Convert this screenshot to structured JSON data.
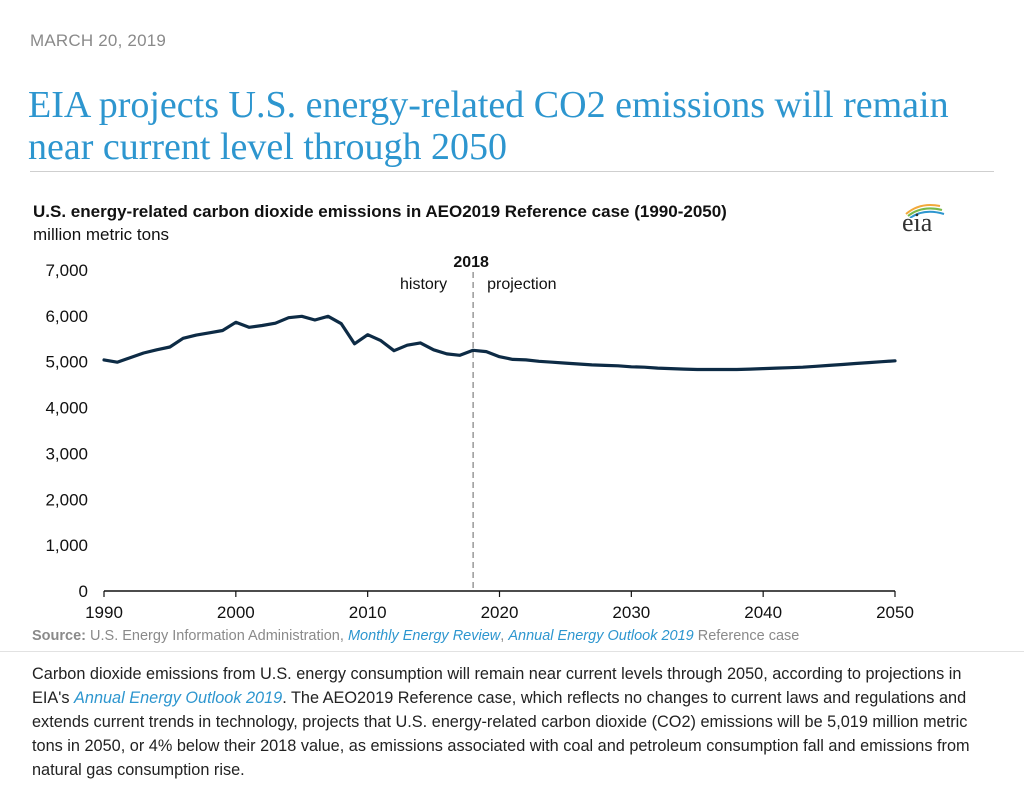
{
  "article": {
    "date": "MARCH 20, 2019",
    "headline": "EIA projects U.S. energy-related CO2 emissions will remain near current level through 2050",
    "source_label": "Source:",
    "source_text": "U.S. Energy Information Administration,",
    "source_link1": "Monthly Energy Review",
    "source_sep": ",",
    "source_link2": "Annual Energy Outlook 2019",
    "source_tail": "Reference case",
    "caption_part1": "Carbon dioxide emissions from U.S. energy consumption will remain near current levels through 2050, according to projections in EIA's",
    "caption_link": "Annual Energy Outlook 2019",
    "caption_part2": ". The AEO2019 Reference case, which reflects no changes to current laws and regulations and extends current trends in technology, projects that U.S. energy-related carbon dioxide (CO2) emissions will be 5,019 million metric tons in 2050, or 4% below their 2018 value, as emissions associated with coal and petroleum consumption fall and emissions from natural gas consumption rise.",
    "logo_text": "eia"
  },
  "colors": {
    "headline": "#2d96cf",
    "line": "#0d2b45",
    "divider": "#999999",
    "link": "#2d96cf"
  },
  "chart_data": {
    "type": "line",
    "title": "U.S. energy-related carbon dioxide emissions in AEO2019 Reference case (1990-2050)",
    "ylabel": "million metric tons",
    "xlim": [
      1990,
      2050
    ],
    "ylim": [
      0,
      7000
    ],
    "x_ticks": [
      1990,
      2000,
      2010,
      2020,
      2030,
      2040,
      2050
    ],
    "x_tick_labels": [
      "1990",
      "2000",
      "2010",
      "2020",
      "2030",
      "2040",
      "2050"
    ],
    "y_ticks": [
      0,
      1000,
      2000,
      3000,
      4000,
      5000,
      6000,
      7000
    ],
    "y_tick_labels": [
      "0",
      "1,000",
      "2,000",
      "3,000",
      "4,000",
      "5,000",
      "6,000",
      "7,000"
    ],
    "grid": false,
    "divider": {
      "x": 2018,
      "label": "2018",
      "left_label": "history",
      "right_label": "projection"
    },
    "series": [
      {
        "x": [
          1990,
          1991,
          1992,
          1993,
          1994,
          1995,
          1996,
          1997,
          1998,
          1999,
          2000,
          2001,
          2002,
          2003,
          2004,
          2005,
          2006,
          2007,
          2008,
          2009,
          2010,
          2011,
          2012,
          2013,
          2014,
          2015,
          2016,
          2017,
          2018,
          2019,
          2020,
          2021,
          2022,
          2023,
          2024,
          2025,
          2026,
          2027,
          2028,
          2029,
          2030,
          2031,
          2032,
          2033,
          2034,
          2035,
          2036,
          2037,
          2038,
          2039,
          2040,
          2041,
          2042,
          2043,
          2044,
          2045,
          2046,
          2047,
          2048,
          2049,
          2050
        ],
        "values": [
          5040,
          4990,
          5090,
          5190,
          5260,
          5320,
          5510,
          5580,
          5630,
          5680,
          5860,
          5750,
          5790,
          5840,
          5960,
          5990,
          5910,
          5990,
          5830,
          5390,
          5590,
          5460,
          5240,
          5360,
          5410,
          5260,
          5170,
          5140,
          5250,
          5220,
          5110,
          5050,
          5040,
          5010,
          4990,
          4970,
          4950,
          4930,
          4920,
          4910,
          4890,
          4880,
          4860,
          4850,
          4840,
          4830,
          4830,
          4830,
          4830,
          4840,
          4850,
          4860,
          4870,
          4880,
          4900,
          4920,
          4940,
          4960,
          4980,
          5000,
          5019
        ]
      }
    ]
  }
}
